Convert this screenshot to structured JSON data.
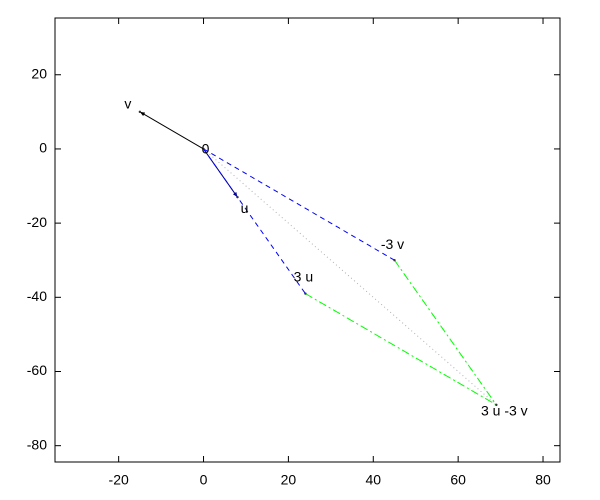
{
  "chart_data": {
    "type": "vector",
    "xlim": [
      -35,
      84
    ],
    "ylim": [
      -84.4,
      35.3
    ],
    "xticks": [
      -20,
      0,
      20,
      40,
      60,
      80
    ],
    "yticks": [
      -80,
      -60,
      -40,
      -20,
      0,
      20
    ],
    "grid": false,
    "series": [
      {
        "color": "#000000",
        "style": "solid",
        "arrow": true,
        "x": [
          0,
          -15
        ],
        "y": [
          0,
          10
        ]
      },
      {
        "color": "#000080",
        "style": "solid",
        "arrow": true,
        "x": [
          0,
          8
        ],
        "y": [
          0,
          -13
        ]
      },
      {
        "color": "#0000ff",
        "style": "dashed",
        "arrow": false,
        "x": [
          0,
          24
        ],
        "y": [
          0,
          -39
        ]
      },
      {
        "color": "#0000ff",
        "style": "dashed",
        "arrow": false,
        "x": [
          0,
          45
        ],
        "y": [
          0,
          -30
        ]
      },
      {
        "color": "#00ff00",
        "style": "dashdot",
        "arrow": false,
        "x": [
          24,
          69
        ],
        "y": [
          -39,
          -69
        ]
      },
      {
        "color": "#00ff00",
        "style": "dashdot",
        "arrow": false,
        "x": [
          45,
          69
        ],
        "y": [
          -30,
          -69
        ]
      },
      {
        "color": "#b0b0b0",
        "style": "dotted",
        "arrow": false,
        "x": [
          0,
          69
        ],
        "y": [
          0,
          -69
        ]
      }
    ],
    "points": [
      {
        "label": "0",
        "x": 0,
        "y": 0
      },
      {
        "label": "v",
        "x": -15,
        "y": 10
      },
      {
        "label": "u",
        "x": 8,
        "y": -13
      },
      {
        "label": "3 u",
        "x": 24,
        "y": -39
      },
      {
        "label": "-3 v",
        "x": 45,
        "y": -30
      },
      {
        "label": "3 u -3 v",
        "x": 69,
        "y": -69
      }
    ]
  }
}
